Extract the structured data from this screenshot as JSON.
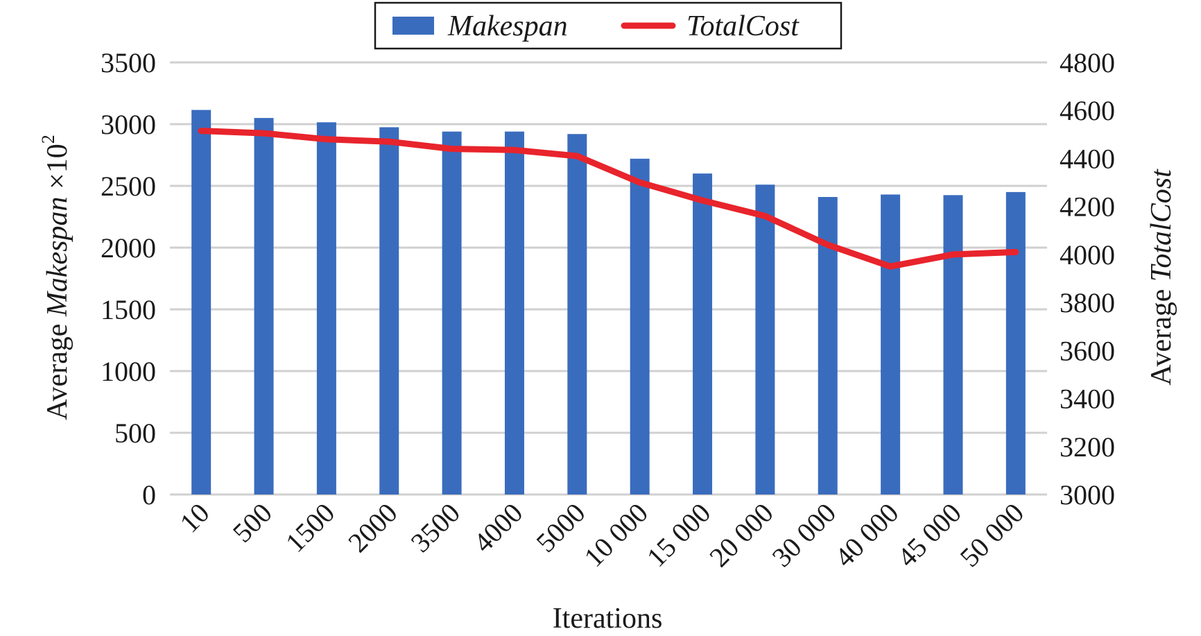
{
  "chart_data": {
    "type": "bar",
    "categories": [
      "10",
      "500",
      "1500",
      "2000",
      "3500",
      "4000",
      "5000",
      "10 000",
      "15 000",
      "20 000",
      "30 000",
      "40 000",
      "45 000",
      "50 000"
    ],
    "series": [
      {
        "name": "Makespan",
        "type": "bar",
        "axis": "left",
        "color": "#3a6cbe",
        "values": [
          3115,
          3050,
          3015,
          2975,
          2940,
          2940,
          2920,
          2720,
          2600,
          2510,
          2410,
          2430,
          2425,
          2450
        ]
      },
      {
        "name": "TotalCost",
        "type": "line",
        "axis": "right",
        "color": "#e8242c",
        "values": [
          4515,
          4505,
          4480,
          4470,
          4440,
          4435,
          4410,
          4300,
          4225,
          4160,
          4040,
          3950,
          4000,
          4010
        ]
      }
    ],
    "xlabel": "Iterations",
    "ylabel_left": {
      "prefix": "Average ",
      "italic": "Makespan",
      "suffix": " ×10",
      "superscript": "2"
    },
    "ylabel_right": {
      "prefix": "Average ",
      "italic": "TotalCost"
    },
    "ylim_left": [
      0,
      3500
    ],
    "ylim_right": [
      3000,
      4800
    ],
    "yticks_left": [
      "0",
      "500",
      "1000",
      "1500",
      "2000",
      "2500",
      "3000",
      "3500"
    ],
    "yticks_right": [
      "3000",
      "3200",
      "3400",
      "3600",
      "3800",
      "4000",
      "4200",
      "4400",
      "4600",
      "4800"
    ],
    "grid": true,
    "legend_placement": "top-center"
  }
}
